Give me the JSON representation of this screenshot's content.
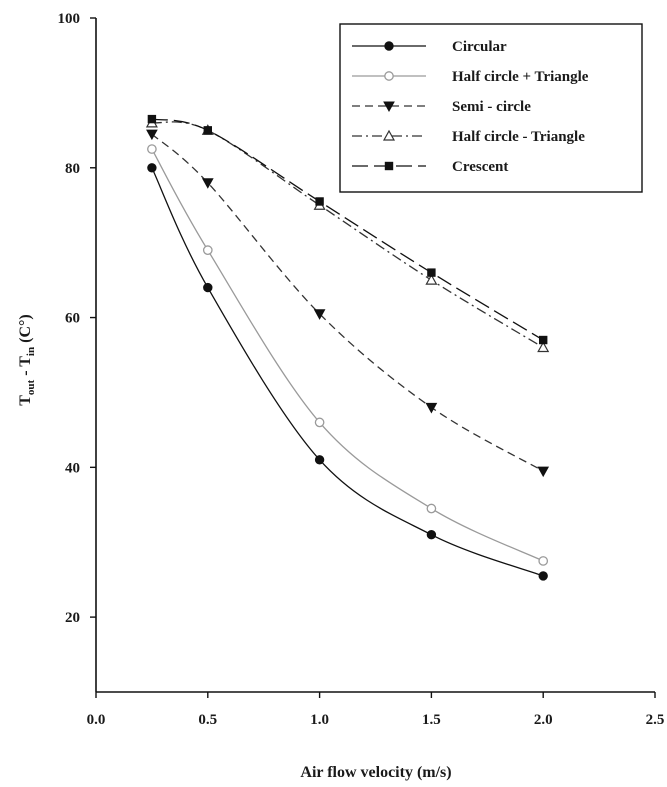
{
  "chart_data": {
    "type": "line",
    "xlabel": "Air flow velocity (m/s)",
    "ylabel": {
      "main": "T",
      "sub1": "out",
      "mid": " - T",
      "sub2": "in",
      "unit": " (C°)"
    },
    "xlim": [
      0.0,
      2.5
    ],
    "ylim": [
      10,
      100
    ],
    "x_ticks": [
      "0.0",
      "0.5",
      "1.0",
      "1.5",
      "2.0",
      "2.5"
    ],
    "y_ticks": [
      "20",
      "40",
      "60",
      "80",
      "100"
    ],
    "grid": false,
    "legend_position": "top-right",
    "x": [
      0.25,
      0.5,
      1.0,
      1.5,
      2.0
    ],
    "series": [
      {
        "name": "Circular",
        "marker": "filled-circle",
        "dash": "solid",
        "color": "#111111",
        "values": [
          80,
          64,
          41,
          31,
          25.5
        ]
      },
      {
        "name": "Half circle + Triangle",
        "marker": "open-circle",
        "dash": "solid",
        "color": "#9a9a9a",
        "values": [
          82.5,
          69,
          46,
          34.5,
          27.5
        ]
      },
      {
        "name": "Semi - circle",
        "marker": "filled-triangle-down",
        "dash": "dashed",
        "color": "#333333",
        "values": [
          84.5,
          78,
          60.5,
          48,
          39.5
        ]
      },
      {
        "name": "Half circle - Triangle",
        "marker": "open-triangle-up",
        "dash": "dash-dot",
        "color": "#333333",
        "values": [
          86,
          85,
          75,
          65,
          56
        ]
      },
      {
        "name": "Crescent",
        "marker": "filled-square",
        "dash": "long-dash",
        "color": "#111111",
        "values": [
          86.5,
          85,
          75.5,
          66,
          57
        ]
      }
    ]
  }
}
